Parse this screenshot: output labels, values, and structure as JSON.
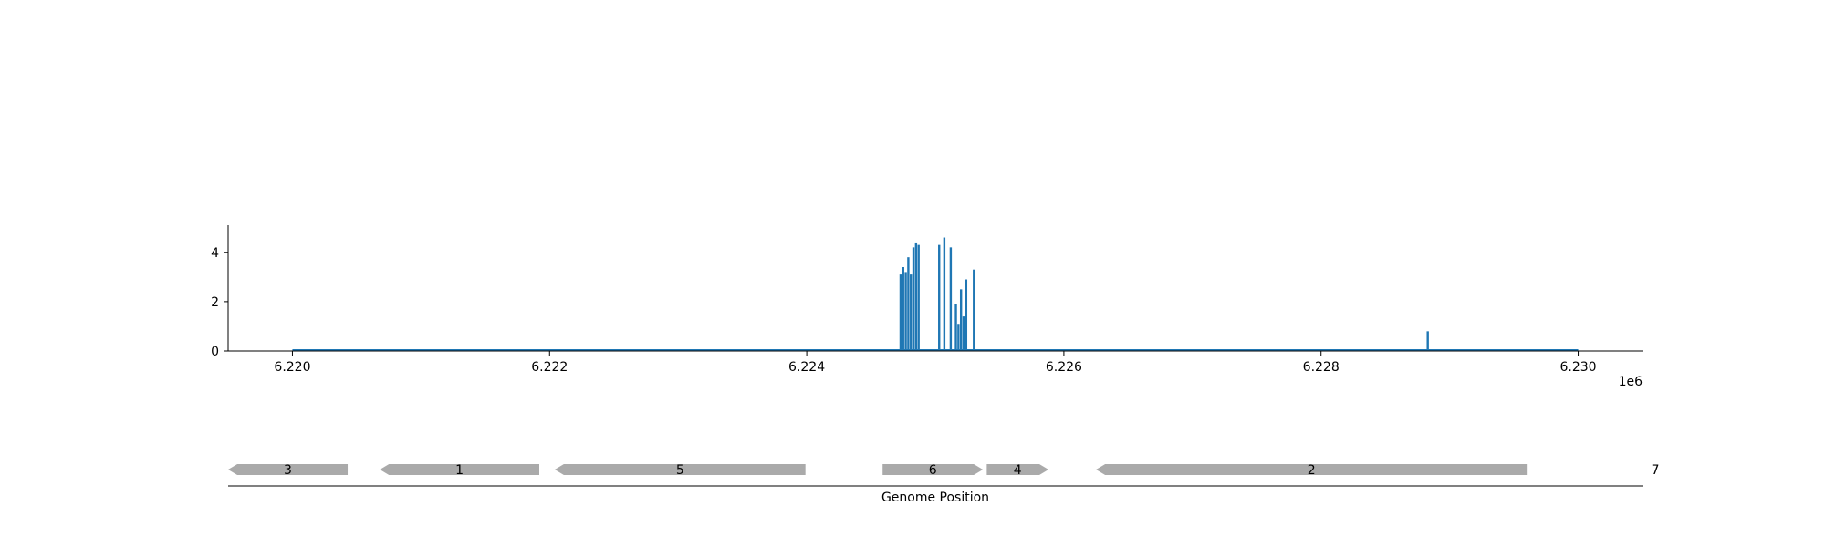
{
  "chart_data": [
    {
      "type": "bar",
      "title": "",
      "xlabel": "",
      "ylabel": "",
      "x_offset_label": "1e6",
      "xlim": [
        6.2195,
        6.2305
      ],
      "ylim": [
        0,
        5.1
      ],
      "x_ticks": [
        6.22,
        6.222,
        6.224,
        6.226,
        6.228,
        6.23
      ],
      "x_tick_labels": [
        "6.220",
        "6.222",
        "6.224",
        "6.226",
        "6.228",
        "6.230"
      ],
      "y_ticks": [
        0,
        2,
        4
      ],
      "y_tick_labels": [
        "0",
        "2",
        "4"
      ],
      "baseline": [
        6.22,
        6.23
      ],
      "color": "#1f77b4",
      "series": [
        {
          "x": [
            6.22473,
            6.22475,
            6.22477,
            6.22479,
            6.22481,
            6.22483,
            6.22485,
            6.22487,
            6.22503,
            6.22507,
            6.22512,
            6.22516,
            6.22518,
            6.2252,
            6.22522,
            6.22524,
            6.2253,
            6.22883
          ],
          "values": [
            3.1,
            3.4,
            3.2,
            3.8,
            3.1,
            4.2,
            4.4,
            4.3,
            4.3,
            4.6,
            4.2,
            1.9,
            1.1,
            2.5,
            1.4,
            2.9,
            3.3,
            0.8
          ]
        }
      ]
    },
    {
      "type": "gene-track",
      "xlabel": "Genome Position",
      "color": "#aaaaaa",
      "genes": [
        {
          "label": "3",
          "start": 6.2195,
          "end": 6.22043,
          "strand": "-"
        },
        {
          "label": "1",
          "start": 6.22068,
          "end": 6.22192,
          "strand": "-"
        },
        {
          "label": "5",
          "start": 6.22204,
          "end": 6.22399,
          "strand": "-"
        },
        {
          "label": "6",
          "start": 6.22459,
          "end": 6.22537,
          "strand": "+"
        },
        {
          "label": "4",
          "start": 6.2254,
          "end": 6.22588,
          "strand": "+"
        },
        {
          "label": "2",
          "start": 6.22625,
          "end": 6.2296,
          "strand": "-"
        },
        {
          "label": "7",
          "start": 6.2306,
          "end": 6.2306,
          "strand": "none"
        }
      ]
    }
  ]
}
